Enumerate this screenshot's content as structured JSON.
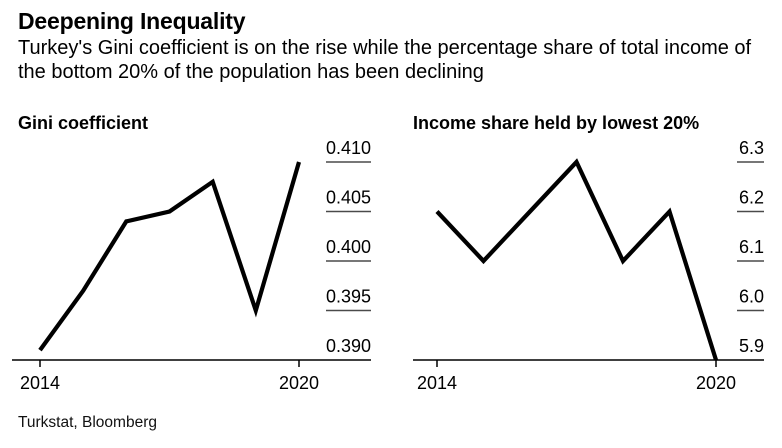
{
  "page": {
    "background_color": "#ffffff",
    "text_color": "#000000",
    "axis_color": "#000000",
    "tick_dash_color": "#4a4a4a"
  },
  "header": {
    "title": "Deepening Inequality",
    "subtitle": "Turkey's Gini coefficient is on the rise while the percentage share of total income of the bottom 20% of the population has been declining"
  },
  "source": "Turkstat, Bloomberg",
  "chart_data": [
    {
      "type": "line",
      "title": "Gini coefficient",
      "x": [
        2014,
        2015,
        2016,
        2017,
        2018,
        2019,
        2020
      ],
      "values": [
        0.391,
        0.397,
        0.404,
        0.405,
        0.408,
        0.395,
        0.41
      ],
      "ylim": [
        0.39,
        0.41
      ],
      "yticks": [
        0.39,
        0.395,
        0.4,
        0.405,
        0.41
      ],
      "ytick_labels": [
        "0.390",
        "0.395",
        "0.400",
        "0.405",
        "0.410"
      ],
      "xticks": [
        2014,
        2020
      ],
      "xtick_labels": [
        "2014",
        "2020"
      ],
      "xlabel": "",
      "ylabel": "",
      "line_color": "#000000",
      "grid": false,
      "tick_label_side": "right",
      "legend": null
    },
    {
      "type": "line",
      "title": "Income share held by lowest 20%",
      "x": [
        2014,
        2015,
        2016,
        2017,
        2018,
        2019,
        2020
      ],
      "values": [
        6.2,
        6.1,
        6.2,
        6.3,
        6.1,
        6.2,
        5.9
      ],
      "ylim": [
        5.9,
        6.3
      ],
      "yticks": [
        5.9,
        6.0,
        6.1,
        6.2,
        6.3
      ],
      "ytick_labels": [
        "5.9",
        "6.0",
        "6.1",
        "6.2",
        "6.3"
      ],
      "xticks": [
        2014,
        2020
      ],
      "xtick_labels": [
        "2014",
        "2020"
      ],
      "xlabel": "",
      "ylabel": "",
      "line_color": "#000000",
      "grid": false,
      "tick_label_side": "right",
      "legend": null
    }
  ]
}
